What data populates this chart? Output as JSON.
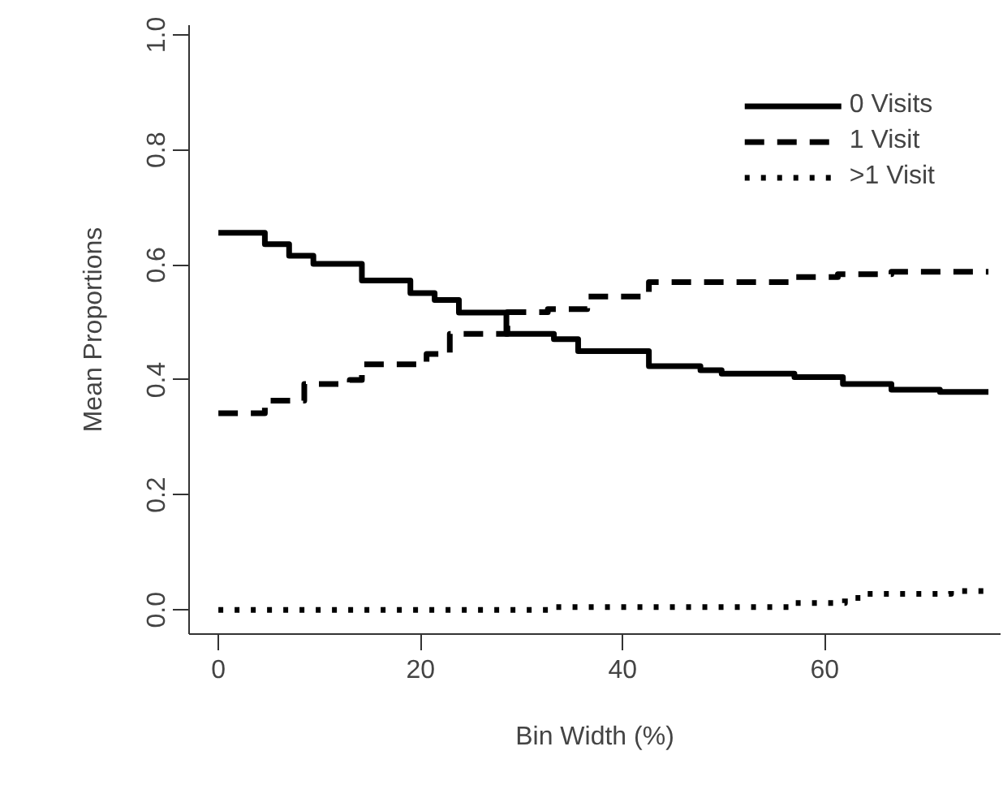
{
  "chart_data": {
    "type": "step",
    "xlabel": "Bin Width (%)",
    "ylabel": "Mean Proportions",
    "xlim": [
      -2.9,
      77.4
    ],
    "ylim": [
      -0.042,
      1.017
    ],
    "xticks": [
      0,
      20,
      40,
      60
    ],
    "yticks": [
      {
        "value": 0,
        "label": "0.0"
      },
      0.2,
      0.4,
      0.6,
      0.8,
      {
        "value": 1,
        "label": "1.0"
      }
    ],
    "grid": false,
    "legend": "top right",
    "series": [
      {
        "name": "0 Visits",
        "color": "#000000",
        "line_style": "solid",
        "x": [
          0,
          4.6,
          7,
          9.4,
          14.2,
          19,
          21.4,
          23.8,
          28.5,
          33.2,
          35.6,
          42.6,
          47.7,
          49.8,
          57,
          61.8,
          66.6,
          71.4,
          76.2
        ],
        "values": [
          0.656,
          0.636,
          0.616,
          0.602,
          0.573,
          0.551,
          0.539,
          0.517,
          0.48,
          0.471,
          0.45,
          0.424,
          0.417,
          0.411,
          0.405,
          0.393,
          0.383,
          0.379,
          0.379
        ]
      },
      {
        "name": "1 Visit",
        "color": "#000000",
        "line_style": "dashed",
        "x": [
          0,
          4.6,
          8.5,
          13,
          14.2,
          20.6,
          22.9,
          28.6,
          32.6,
          36.5,
          42.6,
          56.5,
          61.3,
          66.6,
          76.2
        ],
        "values": [
          0.342,
          0.364,
          0.393,
          0.4,
          0.427,
          0.445,
          0.48,
          0.518,
          0.523,
          0.545,
          0.57,
          0.579,
          0.584,
          0.588,
          0.588
        ]
      },
      {
        "name": ">1 Visit",
        "color": "#000000",
        "line_style": "dotted",
        "x": [
          0,
          33,
          57,
          62,
          64.2,
          72.5,
          76.2
        ],
        "values": [
          0,
          0.005,
          0.012,
          0.021,
          0.028,
          0.033,
          0.033
        ]
      }
    ]
  }
}
